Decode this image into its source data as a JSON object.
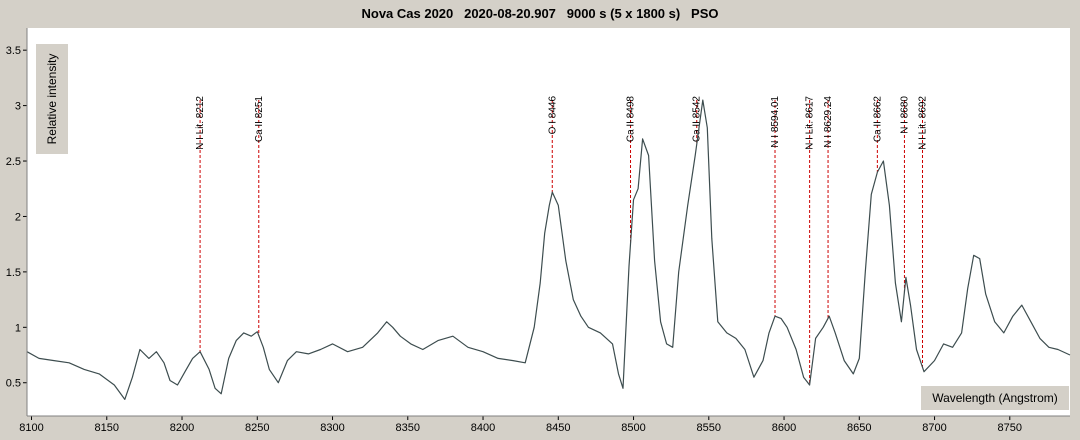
{
  "title": "Nova Cas 2020   2020-08-20.907   9000 s (5 x 1800 s)   PSO",
  "chart_data": {
    "type": "line",
    "title": "Nova Cas 2020   2020-08-20.907   9000 s (5 x 1800 s)   PSO",
    "xlabel": "Wavelength (Angstrom)",
    "ylabel": "Relative intensity",
    "xlim": [
      8097,
      8790
    ],
    "ylim": [
      0.2,
      3.7
    ],
    "x_ticks": [
      8100,
      8150,
      8200,
      8250,
      8300,
      8350,
      8400,
      8450,
      8500,
      8550,
      8600,
      8650,
      8700,
      8750
    ],
    "y_ticks": [
      0.5,
      1,
      1.5,
      2,
      2.5,
      3,
      3.5
    ],
    "y_tick_labels": [
      "0.5",
      "1",
      "1.5",
      "2",
      "2.5",
      "3",
      "3.5"
    ],
    "grid": false,
    "line_color": "#3d4d4f",
    "marker_color": "#cc0000",
    "plot_background": "#ffffff",
    "series": [
      {
        "x": [
          8097,
          8105,
          8115,
          8125,
          8135,
          8145,
          8155,
          8162,
          8167,
          8172,
          8178,
          8183,
          8188,
          8192,
          8197,
          8202,
          8207,
          8212,
          8218,
          8222,
          8226,
          8231,
          8236,
          8241,
          8246,
          8250,
          8254,
          8258,
          8264,
          8270,
          8276,
          8284,
          8292,
          8300,
          8310,
          8320,
          8330,
          8336,
          8340,
          8345,
          8352,
          8360,
          8370,
          8380,
          8390,
          8400,
          8410,
          8420,
          8428,
          8434,
          8438,
          8441,
          8444,
          8446,
          8450,
          8455,
          8460,
          8465,
          8470,
          8478,
          8486,
          8490,
          8493,
          8497,
          8500,
          8503,
          8506,
          8510,
          8514,
          8518,
          8522,
          8526,
          8530,
          8536,
          8541,
          8546,
          8549,
          8552,
          8556,
          8562,
          8568,
          8574,
          8580,
          8586,
          8590,
          8594,
          8598,
          8602,
          8608,
          8613,
          8617,
          8621,
          8626,
          8630,
          8634,
          8640,
          8646,
          8650,
          8654,
          8658,
          8662,
          8666,
          8670,
          8674,
          8678,
          8681,
          8684,
          8688,
          8693,
          8700,
          8706,
          8712,
          8718,
          8722,
          8726,
          8730,
          8734,
          8740,
          8746,
          8752,
          8758,
          8764,
          8770,
          8776,
          8782,
          8790
        ],
        "y": [
          0.78,
          0.72,
          0.7,
          0.68,
          0.62,
          0.58,
          0.48,
          0.35,
          0.55,
          0.8,
          0.72,
          0.78,
          0.68,
          0.52,
          0.48,
          0.6,
          0.72,
          0.78,
          0.62,
          0.45,
          0.4,
          0.72,
          0.88,
          0.95,
          0.92,
          0.96,
          0.82,
          0.62,
          0.5,
          0.7,
          0.78,
          0.76,
          0.8,
          0.85,
          0.78,
          0.82,
          0.95,
          1.05,
          1.0,
          0.92,
          0.85,
          0.8,
          0.88,
          0.92,
          0.82,
          0.78,
          0.72,
          0.7,
          0.68,
          1.0,
          1.4,
          1.85,
          2.1,
          2.22,
          2.1,
          1.6,
          1.25,
          1.1,
          1.0,
          0.95,
          0.85,
          0.58,
          0.45,
          1.55,
          2.15,
          2.25,
          2.7,
          2.55,
          1.6,
          1.05,
          0.85,
          0.82,
          1.5,
          2.1,
          2.55,
          3.05,
          2.8,
          1.8,
          1.05,
          0.95,
          0.9,
          0.8,
          0.55,
          0.7,
          0.95,
          1.1,
          1.08,
          1.0,
          0.8,
          0.55,
          0.48,
          0.9,
          1.0,
          1.1,
          0.95,
          0.7,
          0.58,
          0.72,
          1.5,
          2.2,
          2.4,
          2.5,
          2.1,
          1.4,
          1.05,
          1.45,
          1.2,
          0.8,
          0.6,
          0.7,
          0.85,
          0.82,
          0.95,
          1.35,
          1.65,
          1.62,
          1.3,
          1.05,
          0.95,
          1.1,
          1.2,
          1.05,
          0.9,
          0.82,
          0.8,
          0.75
        ]
      }
    ],
    "lines": [
      {
        "label": "N I Lit. 8212",
        "x": 8212
      },
      {
        "label": "Ca II 8251",
        "x": 8251
      },
      {
        "label": "O I 8446",
        "x": 8446
      },
      {
        "label": "Ca II 8498",
        "x": 8498
      },
      {
        "label": "Ca II 8542",
        "x": 8542
      },
      {
        "label": "N I 8594.01",
        "x": 8594
      },
      {
        "label": "N I Lit. 8617",
        "x": 8617
      },
      {
        "label": "N I 8629.24",
        "x": 8629.24
      },
      {
        "label": "Ca II 8662",
        "x": 8662
      },
      {
        "label": "N I 8680",
        "x": 8680
      },
      {
        "label": "N I Lit. 8692",
        "x": 8692
      }
    ]
  }
}
